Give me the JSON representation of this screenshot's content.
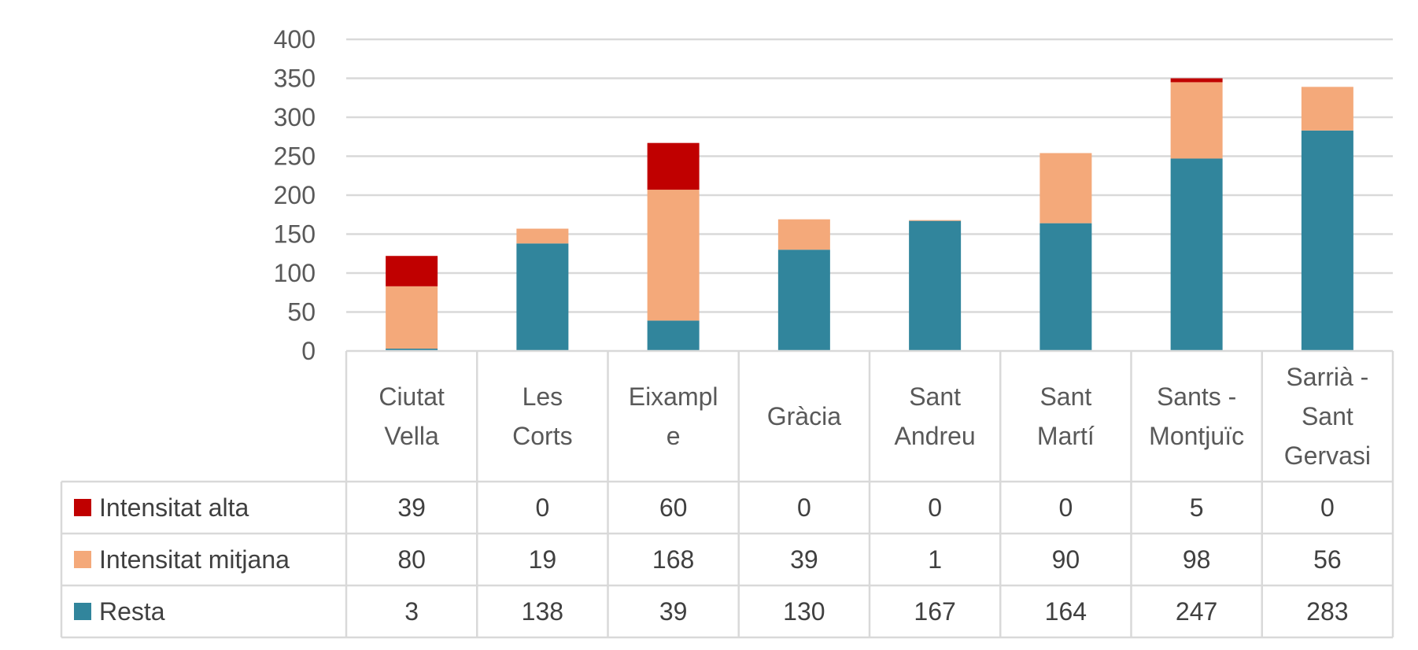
{
  "chart_data": {
    "type": "bar",
    "stacked": true,
    "categories": [
      [
        "Ciutat",
        "Vella"
      ],
      [
        "Les",
        "Corts"
      ],
      [
        "Eixampl",
        "e"
      ],
      [
        "Gràcia"
      ],
      [
        "Sant",
        "Andreu"
      ],
      [
        "Sant",
        "Martí"
      ],
      [
        "Sants -",
        "Montjuïc"
      ],
      [
        "Sarrià -",
        "Sant",
        "Gervasi"
      ]
    ],
    "series": [
      {
        "name": "Intensitat alta",
        "color": "#C00000",
        "values": [
          39,
          0,
          60,
          0,
          0,
          0,
          5,
          0
        ]
      },
      {
        "name": "Intensitat mitjana",
        "color": "#F4A97A",
        "values": [
          80,
          19,
          168,
          39,
          1,
          90,
          98,
          56
        ]
      },
      {
        "name": "Resta",
        "color": "#31859C",
        "values": [
          3,
          138,
          39,
          130,
          167,
          164,
          247,
          283
        ]
      }
    ],
    "ylim": [
      0,
      400
    ],
    "yticks": [
      0,
      50,
      100,
      150,
      200,
      250,
      300,
      350,
      400
    ],
    "grid": true,
    "legend": "data-table"
  }
}
